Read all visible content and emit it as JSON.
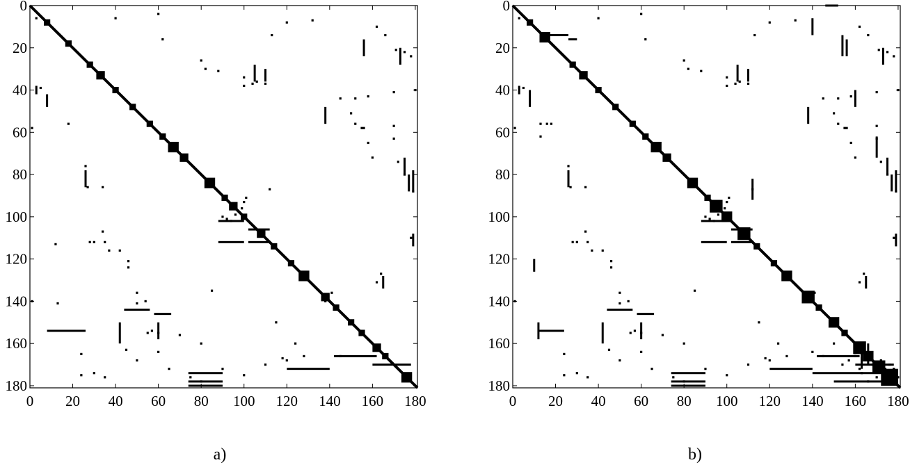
{
  "chart_data": [
    {
      "type": "heatmap",
      "caption": "a)",
      "xlim": [
        0,
        181
      ],
      "ylim": [
        0,
        181
      ],
      "y_inverted": true,
      "xticks": [
        0,
        20,
        40,
        60,
        80,
        100,
        120,
        140,
        160,
        180
      ],
      "yticks": [
        0,
        20,
        40,
        60,
        80,
        100,
        120,
        140,
        160,
        180
      ],
      "grid": false,
      "diagonal_range": [
        0,
        181
      ],
      "diagonal_blocks": [
        [
          8,
          3
        ],
        [
          18,
          3
        ],
        [
          28,
          3
        ],
        [
          33,
          4
        ],
        [
          40,
          3
        ],
        [
          48,
          3
        ],
        [
          56,
          3
        ],
        [
          62,
          3
        ],
        [
          67,
          5
        ],
        [
          72,
          4
        ],
        [
          84,
          5
        ],
        [
          91,
          3
        ],
        [
          95,
          4
        ],
        [
          100,
          3
        ],
        [
          108,
          4
        ],
        [
          114,
          3
        ],
        [
          122,
          3
        ],
        [
          128,
          5
        ],
        [
          138,
          4
        ],
        [
          143,
          3
        ],
        [
          150,
          3
        ],
        [
          155,
          3
        ],
        [
          162,
          4
        ],
        [
          166,
          3
        ],
        [
          176,
          5
        ]
      ],
      "spots": [
        [
          1,
          58
        ],
        [
          1,
          140
        ],
        [
          5,
          39
        ],
        [
          12,
          113
        ],
        [
          13,
          141
        ],
        [
          18,
          56
        ],
        [
          26,
          76
        ],
        [
          27,
          86
        ],
        [
          28,
          112
        ],
        [
          30,
          112
        ],
        [
          34,
          86
        ],
        [
          34,
          107
        ],
        [
          35,
          112
        ],
        [
          37,
          116
        ],
        [
          42,
          116
        ],
        [
          46,
          121
        ],
        [
          46,
          124
        ],
        [
          50,
          136
        ],
        [
          50,
          141
        ],
        [
          54,
          140
        ],
        [
          55,
          155
        ],
        [
          57,
          154
        ],
        [
          60,
          155
        ],
        [
          70,
          156
        ],
        [
          80,
          160
        ],
        [
          85,
          135
        ],
        [
          90,
          100
        ],
        [
          92,
          101
        ],
        [
          94,
          102
        ],
        [
          96,
          99
        ],
        [
          99,
          96
        ],
        [
          100,
          93
        ],
        [
          101,
          91
        ],
        [
          100,
          38
        ],
        [
          104,
          37
        ],
        [
          110,
          37
        ],
        [
          112,
          87
        ],
        [
          115,
          150
        ],
        [
          118,
          167
        ],
        [
          124,
          160
        ],
        [
          128,
          166
        ],
        [
          138,
          140
        ],
        [
          141,
          136
        ],
        [
          145,
          166
        ],
        [
          150,
          51
        ],
        [
          152,
          44
        ],
        [
          152,
          56
        ],
        [
          155,
          58
        ],
        [
          156,
          58
        ],
        [
          158,
          43
        ],
        [
          158,
          65
        ],
        [
          160,
          72
        ],
        [
          162,
          131
        ],
        [
          164,
          127
        ],
        [
          170,
          41
        ],
        [
          170,
          57
        ],
        [
          170,
          63
        ],
        [
          171,
          21
        ],
        [
          172,
          74
        ],
        [
          175,
          80
        ],
        [
          178,
          110
        ],
        [
          179,
          88
        ],
        [
          180,
          40
        ],
        [
          3,
          6
        ],
        [
          40,
          6
        ],
        [
          60,
          4
        ],
        [
          62,
          16
        ],
        [
          80,
          26
        ],
        [
          82,
          30
        ],
        [
          88,
          31
        ],
        [
          100,
          34
        ],
        [
          106,
          36
        ],
        [
          113,
          14
        ],
        [
          120,
          8
        ],
        [
          132,
          7
        ],
        [
          145,
          44
        ],
        [
          162,
          10
        ],
        [
          166,
          14
        ],
        [
          175,
          22
        ],
        [
          178,
          24
        ],
        [
          24,
          165
        ],
        [
          24,
          175
        ],
        [
          30,
          174
        ],
        [
          35,
          176
        ],
        [
          45,
          163
        ],
        [
          50,
          168
        ],
        [
          60,
          164
        ],
        [
          65,
          172
        ],
        [
          75,
          176
        ],
        [
          80,
          178
        ],
        [
          90,
          172
        ],
        [
          100,
          175
        ],
        [
          110,
          170
        ],
        [
          120,
          168
        ]
      ],
      "vsegments": [
        [
          3,
          38,
          42
        ],
        [
          8,
          42,
          48
        ],
        [
          26,
          78,
          86
        ],
        [
          42,
          150,
          160
        ],
        [
          60,
          150,
          158
        ],
        [
          105,
          28,
          36
        ],
        [
          110,
          30,
          36
        ],
        [
          138,
          48,
          56
        ],
        [
          156,
          16,
          24
        ],
        [
          165,
          128,
          134
        ],
        [
          173,
          20,
          28
        ],
        [
          175,
          72,
          80
        ],
        [
          177,
          80,
          88
        ],
        [
          179,
          78,
          88
        ],
        [
          179,
          108,
          114
        ]
      ],
      "hsegments": [
        [
          154,
          8,
          26
        ],
        [
          174,
          74,
          90
        ],
        [
          178,
          74,
          90
        ],
        [
          180,
          74,
          90
        ],
        [
          102,
          88,
          100
        ],
        [
          112,
          88,
          100
        ],
        [
          112,
          102,
          112
        ],
        [
          106,
          102,
          112
        ],
        [
          144,
          44,
          56
        ],
        [
          146,
          58,
          66
        ],
        [
          172,
          120,
          140
        ],
        [
          166,
          142,
          162
        ],
        [
          170,
          160,
          178
        ]
      ]
    },
    {
      "type": "heatmap",
      "caption": "b)",
      "xlim": [
        0,
        181
      ],
      "ylim": [
        0,
        181
      ],
      "y_inverted": true,
      "xticks": [
        0,
        20,
        40,
        60,
        80,
        100,
        120,
        140,
        160,
        180
      ],
      "yticks": [
        0,
        20,
        40,
        60,
        80,
        100,
        120,
        140,
        160,
        180
      ],
      "grid": false,
      "diagonal_range": [
        0,
        181
      ],
      "diagonal_blocks": [
        [
          8,
          3
        ],
        [
          15,
          5
        ],
        [
          28,
          3
        ],
        [
          33,
          4
        ],
        [
          40,
          3
        ],
        [
          48,
          3
        ],
        [
          56,
          3
        ],
        [
          62,
          3
        ],
        [
          67,
          5
        ],
        [
          72,
          4
        ],
        [
          84,
          5
        ],
        [
          91,
          3
        ],
        [
          95,
          6
        ],
        [
          100,
          5
        ],
        [
          108,
          6
        ],
        [
          114,
          3
        ],
        [
          122,
          3
        ],
        [
          128,
          5
        ],
        [
          138,
          6
        ],
        [
          143,
          3
        ],
        [
          150,
          5
        ],
        [
          155,
          3
        ],
        [
          162,
          6
        ],
        [
          166,
          5
        ],
        [
          171,
          6
        ],
        [
          176,
          8
        ]
      ],
      "spots": [
        [
          1,
          58
        ],
        [
          1,
          140
        ],
        [
          5,
          39
        ],
        [
          13,
          56
        ],
        [
          13,
          62
        ],
        [
          16,
          56
        ],
        [
          18,
          56
        ],
        [
          26,
          76
        ],
        [
          27,
          86
        ],
        [
          28,
          112
        ],
        [
          30,
          112
        ],
        [
          34,
          86
        ],
        [
          34,
          107
        ],
        [
          35,
          112
        ],
        [
          37,
          116
        ],
        [
          42,
          116
        ],
        [
          46,
          121
        ],
        [
          46,
          124
        ],
        [
          50,
          136
        ],
        [
          50,
          141
        ],
        [
          54,
          140
        ],
        [
          55,
          155
        ],
        [
          57,
          154
        ],
        [
          60,
          155
        ],
        [
          70,
          156
        ],
        [
          80,
          160
        ],
        [
          85,
          135
        ],
        [
          90,
          100
        ],
        [
          92,
          101
        ],
        [
          94,
          102
        ],
        [
          96,
          99
        ],
        [
          99,
          96
        ],
        [
          100,
          93
        ],
        [
          101,
          91
        ],
        [
          100,
          38
        ],
        [
          104,
          37
        ],
        [
          110,
          37
        ],
        [
          112,
          87
        ],
        [
          115,
          150
        ],
        [
          118,
          167
        ],
        [
          124,
          160
        ],
        [
          128,
          166
        ],
        [
          138,
          140
        ],
        [
          141,
          136
        ],
        [
          145,
          166
        ],
        [
          150,
          51
        ],
        [
          152,
          44
        ],
        [
          152,
          56
        ],
        [
          155,
          58
        ],
        [
          156,
          58
        ],
        [
          158,
          43
        ],
        [
          158,
          65
        ],
        [
          160,
          72
        ],
        [
          162,
          131
        ],
        [
          164,
          127
        ],
        [
          170,
          41
        ],
        [
          170,
          57
        ],
        [
          170,
          63
        ],
        [
          171,
          21
        ],
        [
          172,
          74
        ],
        [
          175,
          80
        ],
        [
          178,
          110
        ],
        [
          179,
          88
        ],
        [
          180,
          40
        ],
        [
          3,
          6
        ],
        [
          40,
          6
        ],
        [
          60,
          4
        ],
        [
          62,
          16
        ],
        [
          80,
          26
        ],
        [
          82,
          30
        ],
        [
          88,
          31
        ],
        [
          100,
          34
        ],
        [
          106,
          36
        ],
        [
          113,
          14
        ],
        [
          120,
          8
        ],
        [
          132,
          7
        ],
        [
          145,
          44
        ],
        [
          162,
          10
        ],
        [
          166,
          14
        ],
        [
          175,
          22
        ],
        [
          178,
          24
        ],
        [
          24,
          165
        ],
        [
          24,
          175
        ],
        [
          30,
          174
        ],
        [
          35,
          176
        ],
        [
          45,
          163
        ],
        [
          50,
          168
        ],
        [
          60,
          164
        ],
        [
          65,
          172
        ],
        [
          75,
          176
        ],
        [
          80,
          178
        ],
        [
          90,
          172
        ],
        [
          100,
          175
        ],
        [
          110,
          170
        ],
        [
          120,
          168
        ],
        [
          140,
          164
        ],
        [
          150,
          160
        ],
        [
          154,
          170
        ],
        [
          157,
          168
        ],
        [
          160,
          166
        ],
        [
          163,
          174
        ],
        [
          168,
          170
        ],
        [
          172,
          168
        ],
        [
          174,
          178
        ],
        [
          178,
          172
        ],
        [
          180,
          176
        ],
        [
          176,
          170
        ],
        [
          170,
          176
        ],
        [
          174,
          172
        ],
        [
          178,
          178
        ],
        [
          166,
          178
        ],
        [
          162,
          172
        ]
      ],
      "vsegments": [
        [
          3,
          38,
          42
        ],
        [
          8,
          40,
          48
        ],
        [
          10,
          120,
          126
        ],
        [
          12,
          150,
          158
        ],
        [
          26,
          78,
          86
        ],
        [
          42,
          150,
          160
        ],
        [
          60,
          150,
          158
        ],
        [
          105,
          28,
          36
        ],
        [
          110,
          30,
          36
        ],
        [
          112,
          82,
          92
        ],
        [
          138,
          48,
          56
        ],
        [
          140,
          6,
          14
        ],
        [
          154,
          14,
          24
        ],
        [
          156,
          16,
          24
        ],
        [
          160,
          40,
          48
        ],
        [
          165,
          128,
          134
        ],
        [
          170,
          62,
          72
        ],
        [
          173,
          20,
          28
        ],
        [
          175,
          72,
          80
        ],
        [
          177,
          80,
          88
        ],
        [
          179,
          78,
          88
        ],
        [
          179,
          108,
          114
        ],
        [
          163,
          164,
          172
        ],
        [
          166,
          160,
          170
        ]
      ],
      "hsegments": [
        [
          154,
          12,
          24
        ],
        [
          174,
          74,
          90
        ],
        [
          178,
          74,
          90
        ],
        [
          180,
          74,
          90
        ],
        [
          102,
          88,
          100
        ],
        [
          112,
          88,
          100
        ],
        [
          112,
          102,
          112
        ],
        [
          106,
          102,
          112
        ],
        [
          144,
          44,
          56
        ],
        [
          146,
          58,
          66
        ],
        [
          172,
          120,
          140
        ],
        [
          166,
          142,
          162
        ],
        [
          170,
          160,
          178
        ],
        [
          174,
          140,
          180
        ],
        [
          178,
          150,
          180
        ],
        [
          0,
          146,
          152
        ],
        [
          14,
          16,
          26
        ],
        [
          16,
          26,
          30
        ]
      ]
    }
  ]
}
